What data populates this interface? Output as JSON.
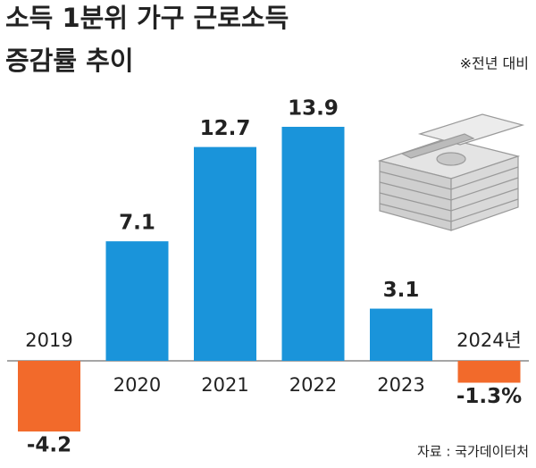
{
  "chart_data": {
    "type": "bar",
    "title": [
      "소득 1분위 가구 근로소득",
      "증감률 추이"
    ],
    "subtitle": "※전년 대비",
    "source": "자료 : 국가데이터처",
    "categories": [
      "2019",
      "2020",
      "2021",
      "2022",
      "2023",
      "2024년"
    ],
    "values": [
      -4.2,
      7.1,
      12.7,
      13.9,
      3.1,
      -1.3
    ],
    "value_labels": [
      "-4.2",
      "7.1",
      "12.7",
      "13.9",
      "3.1",
      "-1.3%"
    ],
    "color": "#1a94da",
    "negative_color": "#f26a2b"
  }
}
